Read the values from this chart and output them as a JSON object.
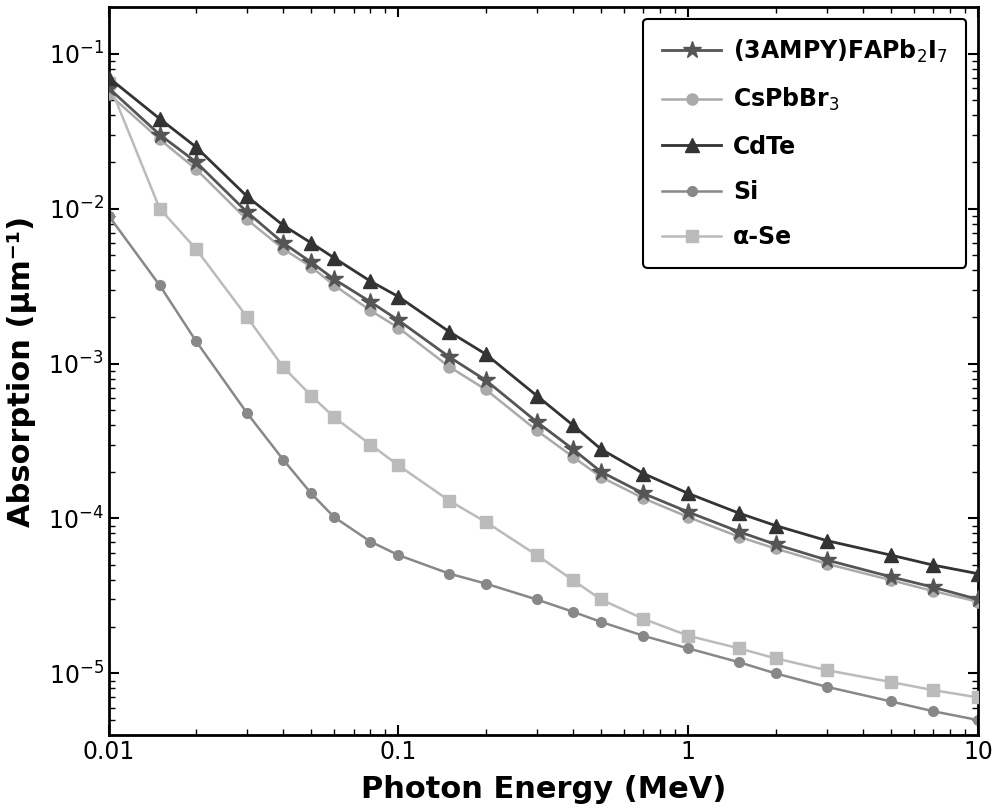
{
  "title": "",
  "xlabel": "Photon Energy (MeV)",
  "ylabel": "Absorption (μm⁻¹)",
  "xlim": [
    0.01,
    10
  ],
  "ylim": [
    4e-06,
    0.2
  ],
  "series": [
    {
      "label": "(3AMPY)FAPb$_2$I$_7$",
      "color": "#555555",
      "marker": "*",
      "markersize": 13,
      "linewidth": 2.0,
      "zorder": 4,
      "x": [
        0.01,
        0.015,
        0.02,
        0.03,
        0.04,
        0.05,
        0.06,
        0.08,
        0.1,
        0.15,
        0.2,
        0.3,
        0.4,
        0.5,
        0.7,
        1.0,
        1.5,
        2.0,
        3.0,
        5.0,
        7.0,
        10.0
      ],
      "y": [
        0.06,
        0.03,
        0.02,
        0.0095,
        0.006,
        0.0045,
        0.0035,
        0.0025,
        0.0019,
        0.0011,
        0.00078,
        0.00042,
        0.00028,
        0.0002,
        0.000145,
        0.00011,
        8.2e-05,
        6.8e-05,
        5.4e-05,
        4.2e-05,
        3.6e-05,
        3e-05
      ]
    },
    {
      "label": "CsPbBr$_3$",
      "color": "#aaaaaa",
      "marker": "o",
      "markersize": 8,
      "linewidth": 1.8,
      "zorder": 3,
      "x": [
        0.01,
        0.015,
        0.02,
        0.03,
        0.04,
        0.05,
        0.06,
        0.08,
        0.1,
        0.15,
        0.2,
        0.3,
        0.4,
        0.5,
        0.7,
        1.0,
        1.5,
        2.0,
        3.0,
        5.0,
        7.0,
        10.0
      ],
      "y": [
        0.055,
        0.028,
        0.018,
        0.0085,
        0.0055,
        0.0042,
        0.0032,
        0.0022,
        0.0017,
        0.00095,
        0.00068,
        0.00037,
        0.00025,
        0.000185,
        0.000135,
        0.000102,
        7.6e-05,
        6.4e-05,
        5.1e-05,
        4e-05,
        3.4e-05,
        2.9e-05
      ]
    },
    {
      "label": "CdTe",
      "color": "#333333",
      "marker": "^",
      "markersize": 10,
      "linewidth": 2.0,
      "zorder": 5,
      "x": [
        0.01,
        0.015,
        0.02,
        0.03,
        0.04,
        0.05,
        0.06,
        0.08,
        0.1,
        0.15,
        0.2,
        0.3,
        0.4,
        0.5,
        0.7,
        1.0,
        1.5,
        2.0,
        3.0,
        5.0,
        7.0,
        10.0
      ],
      "y": [
        0.07,
        0.038,
        0.025,
        0.012,
        0.0078,
        0.006,
        0.0048,
        0.0034,
        0.0027,
        0.0016,
        0.00115,
        0.00062,
        0.0004,
        0.00028,
        0.000195,
        0.000145,
        0.000108,
        9e-05,
        7.2e-05,
        5.8e-05,
        5e-05,
        4.4e-05
      ]
    },
    {
      "label": "Si",
      "color": "#888888",
      "marker": "o",
      "markersize": 7,
      "linewidth": 1.8,
      "zorder": 2,
      "x": [
        0.01,
        0.015,
        0.02,
        0.03,
        0.04,
        0.05,
        0.06,
        0.08,
        0.1,
        0.15,
        0.2,
        0.3,
        0.4,
        0.5,
        0.7,
        1.0,
        1.5,
        2.0,
        3.0,
        5.0,
        7.0,
        10.0
      ],
      "y": [
        0.009,
        0.0032,
        0.0014,
        0.00048,
        0.00024,
        0.000145,
        0.000102,
        7.1e-05,
        5.8e-05,
        4.4e-05,
        3.8e-05,
        3e-05,
        2.5e-05,
        2.15e-05,
        1.75e-05,
        1.45e-05,
        1.18e-05,
        1e-05,
        8.2e-06,
        6.6e-06,
        5.7e-06,
        5e-06
      ]
    },
    {
      "label": "α-Se",
      "color": "#bbbbbb",
      "marker": "s",
      "markersize": 8,
      "linewidth": 1.8,
      "zorder": 3,
      "x": [
        0.01,
        0.015,
        0.02,
        0.03,
        0.04,
        0.05,
        0.06,
        0.08,
        0.1,
        0.15,
        0.2,
        0.3,
        0.4,
        0.5,
        0.7,
        1.0,
        1.5,
        2.0,
        3.0,
        5.0,
        7.0,
        10.0
      ],
      "y": [
        0.065,
        0.01,
        0.0055,
        0.002,
        0.00095,
        0.00062,
        0.00045,
        0.0003,
        0.00022,
        0.00013,
        9.5e-05,
        5.8e-05,
        4e-05,
        3e-05,
        2.25e-05,
        1.75e-05,
        1.45e-05,
        1.25e-05,
        1.05e-05,
        8.8e-06,
        7.8e-06,
        7e-06
      ]
    }
  ],
  "legend_fontsize": 17,
  "axis_label_fontsize": 22,
  "tick_fontsize": 17,
  "background_color": "#ffffff"
}
